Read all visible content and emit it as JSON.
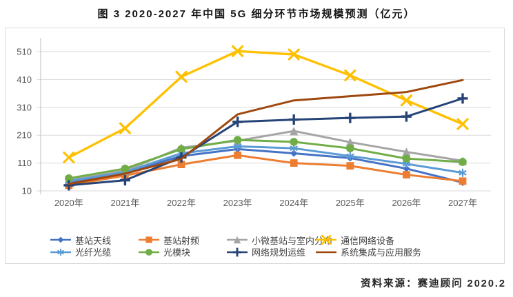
{
  "page": {
    "title": "图 3 2020-2027 年中国 5G 细分环节市场规模预测（亿元）",
    "source": "资料来源：赛迪顾问  2020.2"
  },
  "chart_data": {
    "type": "line",
    "title": "图 3 2020-2027 年中国 5G 细分环节市场规模预测（亿元）",
    "unit": "亿元",
    "categories": [
      "2020年",
      "2021年",
      "2022年",
      "2023年",
      "2024年",
      "2025年",
      "2026年",
      "2027年"
    ],
    "yticks": [
      10,
      110,
      210,
      310,
      410,
      510
    ],
    "ylim": [
      10,
      560
    ],
    "grid": true,
    "legend_position": "bottom",
    "series": [
      {
        "id": "base-station-antenna",
        "name": "基站天线",
        "color": "#4472C4",
        "marker": "diamond",
        "values": [
          42,
          75,
          135,
          160,
          145,
          128,
          90,
          40
        ]
      },
      {
        "id": "base-station-rf",
        "name": "基站射频",
        "color": "#ED7D31",
        "marker": "square",
        "values": [
          30,
          65,
          105,
          138,
          110,
          100,
          68,
          45
        ]
      },
      {
        "id": "small-cell-indoor",
        "name": "小微基站与室内分布",
        "color": "#A5A5A5",
        "marker": "triangle",
        "values": [
          48,
          82,
          165,
          190,
          225,
          185,
          150,
          118
        ]
      },
      {
        "id": "network-equipment",
        "name": "通信网络设备",
        "color": "#FFC000",
        "marker": "x",
        "values": [
          130,
          235,
          420,
          512,
          500,
          425,
          335,
          250
        ]
      },
      {
        "id": "fiber-optic-cable",
        "name": "光纤光缆",
        "color": "#5B9BD5",
        "marker": "asterisk",
        "values": [
          45,
          78,
          145,
          170,
          163,
          135,
          107,
          75
        ]
      },
      {
        "id": "optical-module",
        "name": "光模块",
        "color": "#70AD47",
        "marker": "circle",
        "values": [
          55,
          90,
          160,
          193,
          186,
          163,
          126,
          114
        ]
      },
      {
        "id": "network-planning-ops",
        "name": "网络规划运维",
        "color": "#264478",
        "marker": "plus",
        "values": [
          30,
          48,
          130,
          258,
          266,
          272,
          277,
          342
        ]
      },
      {
        "id": "system-integration-services",
        "name": "系统集成与应用服务",
        "color": "#9E480E",
        "marker": "none",
        "values": [
          35,
          72,
          125,
          285,
          335,
          350,
          365,
          408
        ]
      }
    ]
  }
}
